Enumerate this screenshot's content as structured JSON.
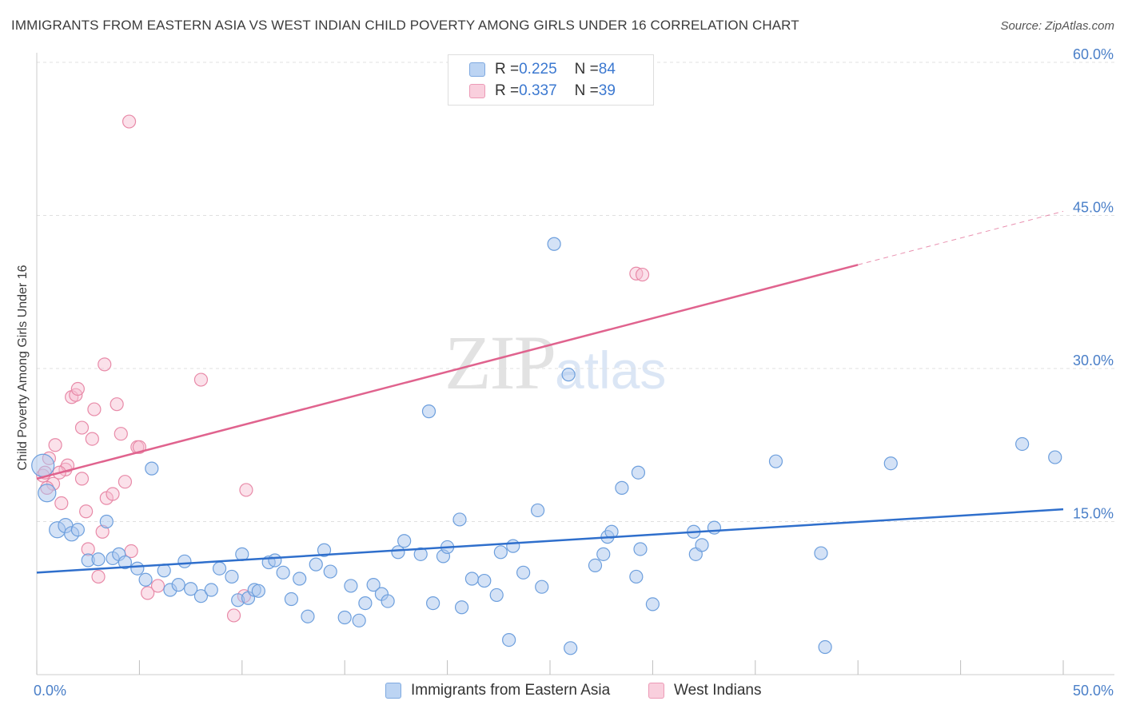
{
  "title": "IMMIGRANTS FROM EASTERN ASIA VS WEST INDIAN CHILD POVERTY AMONG GIRLS UNDER 16 CORRELATION CHART",
  "source": "Source: ZipAtlas.com",
  "watermark": {
    "zip": "ZIP",
    "atlas": "atlas"
  },
  "legend": {
    "rows": [
      {
        "r_label": "R = ",
        "r_value": "0.225",
        "n_label": "N = ",
        "n_value": "84"
      },
      {
        "r_label": "R = ",
        "r_value": "0.337",
        "n_label": "N = ",
        "n_value": "39"
      }
    ]
  },
  "colors": {
    "blue_fill": "#a9c6ee",
    "blue_stroke": "#6d9fdd",
    "blue_line": "#2f6fcc",
    "pink_fill": "#f6bcd0",
    "pink_stroke": "#e88aa8",
    "pink_line": "#e0638e",
    "tick_text": "#4a7fc8",
    "grid": "#e0e0e0"
  },
  "chart_data": {
    "type": "scatter",
    "title": "IMMIGRANTS FROM EASTERN ASIA VS WEST INDIAN CHILD POVERTY AMONG GIRLS UNDER 16 CORRELATION CHART",
    "xlabel": "",
    "ylabel": "Child Poverty Among Girls Under 16",
    "xlim": [
      0,
      50
    ],
    "ylim": [
      0,
      60
    ],
    "x_tick_labels": [
      "0.0%",
      "50.0%"
    ],
    "y_ticks": [
      15,
      30,
      45,
      60
    ],
    "y_tick_labels": [
      "15.0%",
      "30.0%",
      "45.0%",
      "60.0%"
    ],
    "legend_position": "top-center",
    "series": [
      {
        "name": "Immigrants from Eastern Asia",
        "color": "#a9c6ee",
        "trend": {
          "x0": 0,
          "y0": 10.0,
          "x1": 50,
          "y1": 16.2,
          "dashed_from": null
        },
        "points": [
          [
            0.3,
            20.5,
            14
          ],
          [
            0.5,
            17.8,
            11
          ],
          [
            1.0,
            14.2,
            10
          ],
          [
            1.4,
            14.6,
            9
          ],
          [
            1.7,
            13.8,
            9
          ],
          [
            2.0,
            14.2,
            8
          ],
          [
            2.5,
            11.2,
            8
          ],
          [
            3.0,
            11.3,
            8
          ],
          [
            3.4,
            15.0,
            8
          ],
          [
            3.7,
            11.4,
            8
          ],
          [
            4.0,
            11.8,
            8
          ],
          [
            4.3,
            11.0,
            8
          ],
          [
            4.9,
            10.4,
            8
          ],
          [
            5.3,
            9.3,
            8
          ],
          [
            5.6,
            20.2,
            8
          ],
          [
            6.2,
            10.2,
            8
          ],
          [
            6.5,
            8.3,
            8
          ],
          [
            6.9,
            8.8,
            8
          ],
          [
            7.2,
            11.1,
            8
          ],
          [
            7.5,
            8.4,
            8
          ],
          [
            8.0,
            7.7,
            8
          ],
          [
            8.5,
            8.3,
            8
          ],
          [
            8.9,
            10.4,
            8
          ],
          [
            9.5,
            9.6,
            8
          ],
          [
            9.8,
            7.3,
            8
          ],
          [
            10.0,
            11.8,
            8
          ],
          [
            10.3,
            7.5,
            8
          ],
          [
            10.6,
            8.3,
            8
          ],
          [
            10.8,
            8.2,
            8
          ],
          [
            11.3,
            11.0,
            8
          ],
          [
            11.6,
            11.2,
            8
          ],
          [
            12.0,
            10.0,
            8
          ],
          [
            12.4,
            7.4,
            8
          ],
          [
            12.8,
            9.4,
            8
          ],
          [
            13.2,
            5.7,
            8
          ],
          [
            13.6,
            10.8,
            8
          ],
          [
            14.0,
            12.2,
            8
          ],
          [
            14.3,
            10.1,
            8
          ],
          [
            15.0,
            5.6,
            8
          ],
          [
            15.3,
            8.7,
            8
          ],
          [
            15.7,
            5.3,
            8
          ],
          [
            16.0,
            7.0,
            8
          ],
          [
            16.4,
            8.8,
            8
          ],
          [
            16.8,
            7.9,
            8
          ],
          [
            17.1,
            7.2,
            8
          ],
          [
            17.6,
            12.0,
            8
          ],
          [
            17.9,
            13.1,
            8
          ],
          [
            18.7,
            11.8,
            8
          ],
          [
            19.3,
            7.0,
            8
          ],
          [
            19.1,
            25.8,
            8
          ],
          [
            19.8,
            11.6,
            8
          ],
          [
            20.0,
            12.5,
            8
          ],
          [
            20.6,
            15.2,
            8
          ],
          [
            20.7,
            6.6,
            8
          ],
          [
            21.2,
            9.4,
            8
          ],
          [
            21.8,
            9.2,
            8
          ],
          [
            22.4,
            7.8,
            8
          ],
          [
            22.6,
            12.0,
            8
          ],
          [
            23.0,
            3.4,
            8
          ],
          [
            23.2,
            12.6,
            8
          ],
          [
            23.7,
            10.0,
            8
          ],
          [
            24.4,
            16.1,
            8
          ],
          [
            24.6,
            8.6,
            8
          ],
          [
            25.2,
            42.2,
            8
          ],
          [
            25.9,
            29.4,
            8
          ],
          [
            26.0,
            2.6,
            8
          ],
          [
            27.2,
            10.7,
            8
          ],
          [
            27.6,
            11.8,
            8
          ],
          [
            27.8,
            13.5,
            8
          ],
          [
            28.0,
            14.0,
            8
          ],
          [
            28.5,
            18.3,
            8
          ],
          [
            29.4,
            12.3,
            8
          ],
          [
            29.2,
            9.6,
            8
          ],
          [
            29.3,
            19.8,
            8
          ],
          [
            30.0,
            6.9,
            8
          ],
          [
            32.0,
            14.0,
            8
          ],
          [
            32.1,
            11.8,
            8
          ],
          [
            32.4,
            12.7,
            8
          ],
          [
            33.0,
            14.4,
            8
          ],
          [
            36.0,
            20.9,
            8
          ],
          [
            38.2,
            11.9,
            8
          ],
          [
            38.4,
            2.7,
            8
          ],
          [
            41.6,
            20.7,
            8
          ],
          [
            48.0,
            22.6,
            8
          ],
          [
            49.6,
            21.3,
            8
          ]
        ]
      },
      {
        "name": "West Indians",
        "color": "#f6bcd0",
        "trend": {
          "x0": 0,
          "y0": 19.2,
          "x1": 50,
          "y1": 45.4,
          "dashed_from": 40.0
        },
        "points": [
          [
            0.3,
            19.5,
            8
          ],
          [
            0.4,
            19.8,
            8
          ],
          [
            0.6,
            21.2,
            8
          ],
          [
            0.8,
            18.7,
            8
          ],
          [
            0.9,
            22.5,
            8
          ],
          [
            1.2,
            16.8,
            8
          ],
          [
            1.4,
            20.1,
            8
          ],
          [
            1.5,
            20.5,
            8
          ],
          [
            1.7,
            27.2,
            8
          ],
          [
            1.9,
            27.4,
            8
          ],
          [
            2.0,
            28.0,
            8
          ],
          [
            2.2,
            24.2,
            8
          ],
          [
            2.2,
            19.2,
            8
          ],
          [
            2.4,
            16.0,
            8
          ],
          [
            2.5,
            12.3,
            8
          ],
          [
            2.7,
            23.1,
            8
          ],
          [
            2.8,
            26.0,
            8
          ],
          [
            3.0,
            9.6,
            8
          ],
          [
            3.2,
            14.0,
            8
          ],
          [
            3.3,
            30.4,
            8
          ],
          [
            3.4,
            17.3,
            8
          ],
          [
            3.7,
            17.7,
            8
          ],
          [
            3.9,
            26.5,
            8
          ],
          [
            4.1,
            23.6,
            8
          ],
          [
            4.3,
            18.9,
            8
          ],
          [
            4.5,
            54.2,
            8
          ],
          [
            4.6,
            12.1,
            8
          ],
          [
            4.9,
            22.3,
            8
          ],
          [
            5.0,
            22.3,
            8
          ],
          [
            5.4,
            8.0,
            8
          ],
          [
            5.9,
            8.7,
            8
          ],
          [
            8.0,
            28.9,
            8
          ],
          [
            9.6,
            5.8,
            8
          ],
          [
            10.1,
            7.7,
            8
          ],
          [
            10.2,
            18.1,
            8
          ],
          [
            29.2,
            39.3,
            8
          ],
          [
            29.5,
            39.2,
            8
          ],
          [
            0.5,
            18.3,
            8
          ],
          [
            1.1,
            19.8,
            8
          ]
        ]
      }
    ]
  },
  "bottom_legend": [
    {
      "label": "Immigrants from Eastern Asia"
    },
    {
      "label": "West Indians"
    }
  ]
}
